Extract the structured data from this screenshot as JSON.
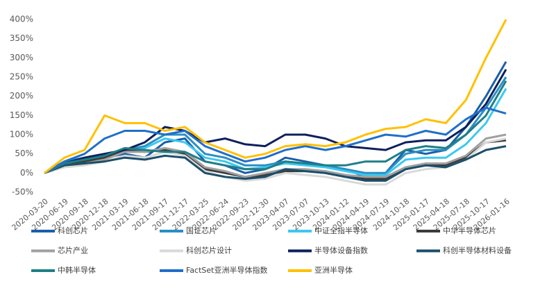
{
  "chart_data": {
    "type": "line",
    "categories": [
      "2020-03-20",
      "2020-06-19",
      "2020-09-18",
      "2020-12-18",
      "2021-03-19",
      "2021-06-18",
      "2021-09-17",
      "2021-12-17",
      "2022-03-25",
      "2022-06-24",
      "2022-09-23",
      "2022-12-30",
      "2023-04-07",
      "2023-07-07",
      "2023-10-13",
      "2024-01-12",
      "2024-04-19",
      "2024-07-19",
      "2024-10-18",
      "2025-01-17",
      "2025-04-18",
      "2025-07-18",
      "2025-10-17",
      "2026-01-16"
    ],
    "ylim": [
      -50,
      420
    ],
    "yticks": [
      {
        "value": -50,
        "label": "-50%"
      },
      {
        "value": 0,
        "label": "0%"
      },
      {
        "value": 50,
        "label": "50%"
      },
      {
        "value": 100,
        "label": "100%"
      },
      {
        "value": 150,
        "label": "150%"
      },
      {
        "value": 200,
        "label": "200%"
      },
      {
        "value": 250,
        "label": "250%"
      },
      {
        "value": 300,
        "label": "300%"
      },
      {
        "value": 350,
        "label": "350%"
      },
      {
        "value": 400,
        "label": "400%"
      }
    ],
    "grid": false,
    "series": [
      {
        "name": "科创芯片",
        "color": "#1a5fa8",
        "values": [
          0,
          20,
          30,
          40,
          50,
          40,
          80,
          90,
          30,
          20,
          0,
          10,
          40,
          30,
          20,
          10,
          -10,
          0,
          60,
          50,
          60,
          120,
          200,
          290
        ]
      },
      {
        "name": "国证芯片",
        "color": "#2a8ec4",
        "values": [
          0,
          30,
          40,
          50,
          60,
          70,
          100,
          100,
          50,
          40,
          20,
          20,
          30,
          25,
          20,
          10,
          0,
          0,
          50,
          60,
          60,
          100,
          170,
          250
        ]
      },
      {
        "name": "中证全指半导体",
        "color": "#3cc8f0",
        "values": [
          0,
          25,
          35,
          45,
          55,
          65,
          90,
          80,
          40,
          30,
          10,
          15,
          25,
          20,
          15,
          5,
          -5,
          -5,
          35,
          40,
          40,
          75,
          130,
          220
        ]
      },
      {
        "name": "中华半导体芯片",
        "color": "#3b3b3b",
        "values": [
          0,
          25,
          30,
          40,
          60,
          55,
          60,
          50,
          10,
          0,
          -10,
          -5,
          5,
          5,
          0,
          -10,
          -15,
          -15,
          10,
          20,
          20,
          40,
          80,
          85
        ]
      },
      {
        "name": "芯片产业",
        "color": "#a0a0a0",
        "values": [
          0,
          20,
          25,
          35,
          55,
          55,
          65,
          55,
          15,
          5,
          -10,
          0,
          10,
          10,
          5,
          -5,
          -10,
          -10,
          15,
          25,
          25,
          45,
          90,
          100
        ]
      },
      {
        "name": "科创芯片设计",
        "color": "#d9d9d9",
        "values": [
          0,
          15,
          20,
          30,
          45,
          40,
          55,
          45,
          5,
          -10,
          -20,
          -15,
          0,
          -5,
          -10,
          -20,
          -30,
          -30,
          0,
          10,
          15,
          35,
          80,
          90
        ]
      },
      {
        "name": "半导体设备指数",
        "color": "#0d1f5c",
        "values": [
          0,
          25,
          40,
          50,
          60,
          80,
          120,
          110,
          80,
          90,
          75,
          70,
          100,
          100,
          90,
          70,
          65,
          60,
          80,
          85,
          85,
          120,
          180,
          270
        ]
      },
      {
        "name": "科创半导体材料设备",
        "color": "#1b4f6b",
        "values": [
          0,
          20,
          25,
          30,
          40,
          35,
          45,
          40,
          0,
          -10,
          -15,
          -10,
          10,
          5,
          0,
          -10,
          -20,
          -20,
          10,
          20,
          15,
          35,
          60,
          70
        ]
      },
      {
        "name": "中韩半导体",
        "color": "#1f7f86",
        "values": [
          0,
          25,
          35,
          45,
          65,
          60,
          55,
          55,
          30,
          20,
          10,
          10,
          30,
          25,
          20,
          20,
          30,
          30,
          60,
          70,
          65,
          100,
          150,
          240
        ]
      },
      {
        "name": "FactSet亚洲半导体指数",
        "color": "#1f6fc9",
        "values": [
          0,
          30,
          50,
          90,
          110,
          110,
          100,
          110,
          70,
          50,
          30,
          40,
          60,
          70,
          60,
          70,
          85,
          100,
          95,
          110,
          100,
          140,
          170,
          155
        ]
      },
      {
        "name": "亚洲半导体",
        "color": "#ffc000",
        "values": [
          0,
          40,
          60,
          150,
          130,
          130,
          110,
          120,
          80,
          60,
          40,
          50,
          70,
          75,
          70,
          80,
          100,
          115,
          120,
          140,
          130,
          190,
          300,
          400
        ]
      }
    ]
  }
}
